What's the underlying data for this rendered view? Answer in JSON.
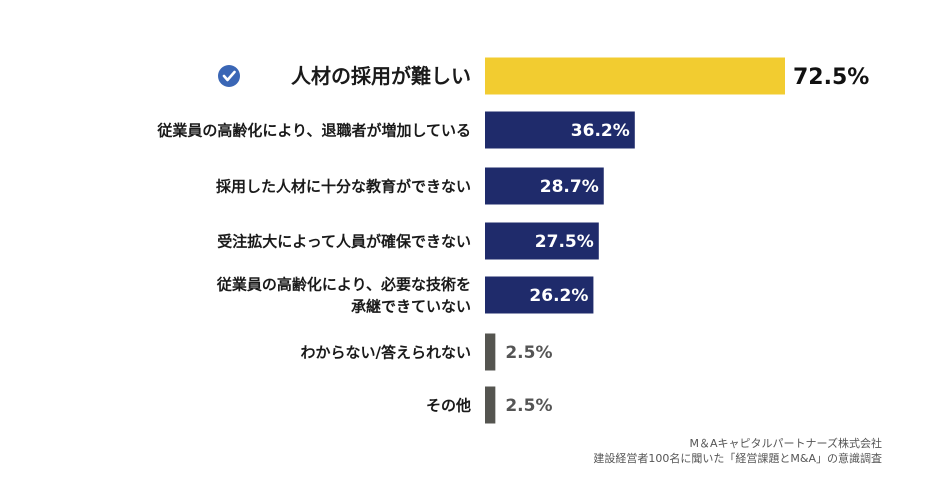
{
  "chart_data": {
    "type": "bar",
    "orientation": "horizontal",
    "categories": [
      "人材の採用が難しい",
      "従業員の高齢化により、退職者が増加している",
      "採用した人材に十分な教育ができない",
      "受注拡大によって人員が確保できない",
      "従業員の高齢化により、必要な技術を\n承継できていない",
      "わからない/答えられない",
      "その他"
    ],
    "values": [
      72.5,
      36.2,
      28.7,
      27.5,
      26.2,
      2.5,
      2.5
    ],
    "value_labels": [
      "72.5%",
      "36.2%",
      "28.7%",
      "27.5%",
      "26.2%",
      "2.5%",
      "2.5%"
    ],
    "highlight_index": 0,
    "highlight_icon": "check-circle-icon",
    "xlim": [
      0,
      100
    ],
    "grid": false,
    "legend": "none",
    "colors": {
      "highlight": "#f2cc30",
      "primary": "#1f2b6b",
      "minor": "#555550",
      "check_icon": "#3a66b5"
    }
  },
  "source": {
    "line1": "M＆Aキャピタルパートナーズ株式会社",
    "line2": "建設経営者100名に聞いた「経営課題とM&A」の意識調査"
  }
}
